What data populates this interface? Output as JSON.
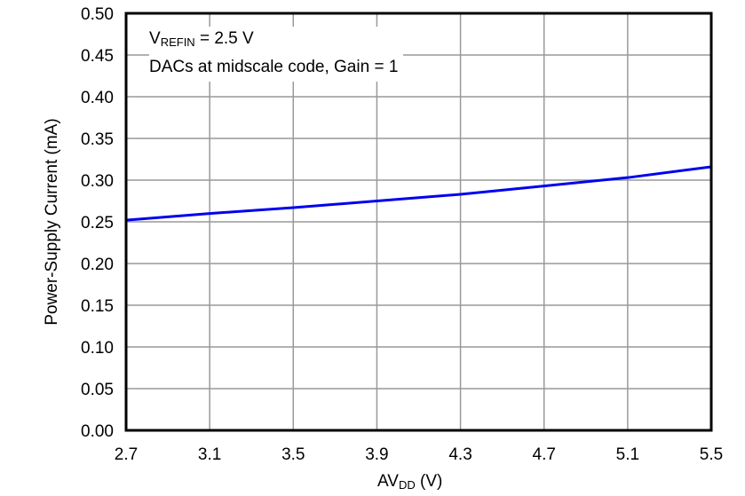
{
  "chart_data": {
    "type": "line",
    "title": "",
    "xlabel": "AV_DD (V)",
    "ylabel": "Power-Supply Current (mA)",
    "xlim": [
      2.7,
      5.5
    ],
    "ylim": [
      0.0,
      0.5
    ],
    "x_ticks": [
      "2.7",
      "3.1",
      "3.5",
      "3.9",
      "4.3",
      "4.7",
      "5.1",
      "5.5"
    ],
    "y_ticks": [
      "0.00",
      "0.05",
      "0.10",
      "0.15",
      "0.20",
      "0.25",
      "0.30",
      "0.35",
      "0.40",
      "0.45",
      "0.50"
    ],
    "grid": true,
    "legend": null,
    "annotations": [
      "V_REFIN = 2.5 V",
      "DACs at midscale code, Gain = 1"
    ],
    "series": [
      {
        "name": "Power-Supply Current",
        "color": "#0000ee",
        "x": [
          2.7,
          3.1,
          3.5,
          3.9,
          4.3,
          4.7,
          5.1,
          5.5
        ],
        "y": [
          0.252,
          0.26,
          0.267,
          0.275,
          0.283,
          0.293,
          0.303,
          0.316
        ]
      }
    ]
  },
  "labels": {
    "ylabel": "Power-Supply Current (mA)",
    "xlabel_main": "AV",
    "xlabel_sub": "DD",
    "xlabel_tail": " (V)",
    "annot_v": "V",
    "annot_sub": "REFIN",
    "annot_line1_tail": " = 2.5 V",
    "annot_line2": "DACs at midscale code, Gain = 1"
  },
  "colors": {
    "line": "#0000ee",
    "grid": "#999999",
    "frame": "#000000"
  }
}
